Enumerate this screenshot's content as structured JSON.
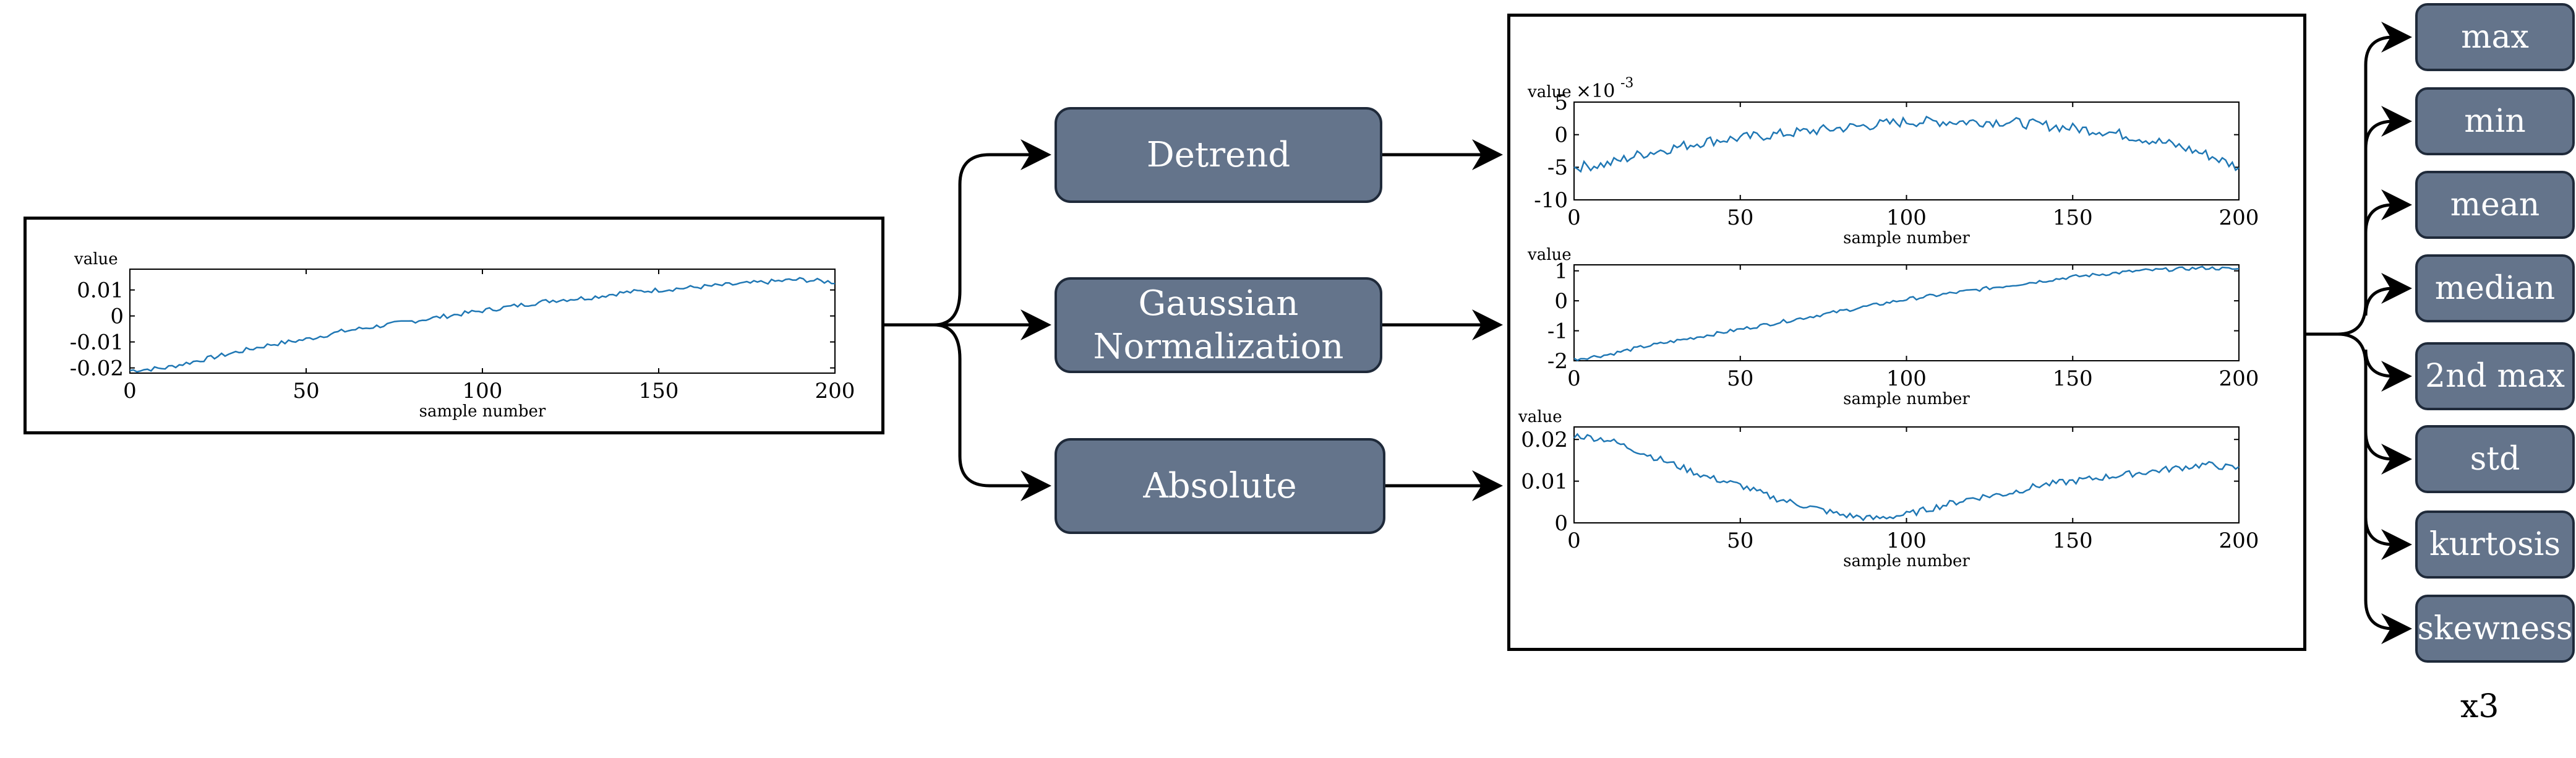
{
  "processing_steps": [
    {
      "label": "Detrend"
    },
    {
      "label": "Gaussian Normalization",
      "lines": [
        "Gaussian",
        "Normalization"
      ]
    },
    {
      "label": "Absolute"
    }
  ],
  "features": [
    "max",
    "min",
    "mean",
    "median",
    "2nd max",
    "std",
    "kurtosis",
    "skewness"
  ],
  "multiplier": "x3",
  "colors": {
    "box_fill": "#64748b",
    "box_border": "#1f2a3a",
    "line": "#1f77b4",
    "arrow": "#000000"
  },
  "chart_data": [
    {
      "id": "raw",
      "type": "line",
      "ylabel": "value",
      "xlabel": "sample number",
      "xlim": [
        0,
        200
      ],
      "ylim": [
        -0.022,
        0.018
      ],
      "x_ticks": [
        "0",
        "50",
        "100",
        "150",
        "200"
      ],
      "y_ticks": [
        {
          "v": 0.01,
          "label": "0.01"
        },
        {
          "v": 0,
          "label": "0"
        },
        {
          "v": -0.01,
          "label": "-0.01"
        },
        {
          "v": -0.02,
          "label": "-0.02"
        }
      ],
      "series": [
        {
          "x": [
            0,
            10,
            20,
            30,
            40,
            50,
            60,
            70,
            80,
            90,
            100,
            110,
            120,
            130,
            140,
            150,
            160,
            170,
            180,
            190,
            200
          ],
          "y": [
            -0.021,
            -0.02,
            -0.017,
            -0.014,
            -0.011,
            -0.009,
            -0.006,
            -0.004,
            -0.002,
            0.0,
            0.002,
            0.004,
            0.006,
            0.007,
            0.009,
            0.01,
            0.011,
            0.012,
            0.013,
            0.014,
            0.013
          ]
        }
      ]
    },
    {
      "id": "detrend",
      "type": "line",
      "ylabel": "value",
      "exponent_prefix": "×10",
      "exponent": "-3",
      "xlabel": "sample number",
      "xlim": [
        0,
        200
      ],
      "ylim": [
        -10,
        5
      ],
      "x_ticks": [
        "0",
        "50",
        "100",
        "150",
        "200"
      ],
      "y_ticks": [
        {
          "v": 5,
          "label": "5"
        },
        {
          "v": 0,
          "label": "0"
        },
        {
          "v": -5,
          "label": "-5"
        },
        {
          "v": -10,
          "label": "-10"
        }
      ],
      "series": [
        {
          "x": [
            0,
            10,
            20,
            30,
            40,
            50,
            60,
            70,
            80,
            90,
            100,
            110,
            120,
            130,
            140,
            150,
            160,
            170,
            180,
            190,
            200
          ],
          "y": [
            -5,
            -4.5,
            -3,
            -2,
            -1,
            -0.5,
            0,
            0.5,
            1,
            1.5,
            2,
            2,
            2,
            2,
            1.5,
            1,
            0.5,
            -0.5,
            -1.5,
            -3,
            -5
          ]
        }
      ]
    },
    {
      "id": "gaussian",
      "type": "line",
      "ylabel": "value",
      "xlabel": "sample number",
      "xlim": [
        0,
        200
      ],
      "ylim": [
        -2,
        1.2
      ],
      "x_ticks": [
        "0",
        "50",
        "100",
        "150",
        "200"
      ],
      "y_ticks": [
        {
          "v": 1,
          "label": "1"
        },
        {
          "v": 0,
          "label": "0"
        },
        {
          "v": -1,
          "label": "-1"
        },
        {
          "v": -2,
          "label": "-2"
        }
      ],
      "series": [
        {
          "x": [
            0,
            10,
            20,
            30,
            40,
            50,
            60,
            70,
            80,
            90,
            100,
            110,
            120,
            130,
            140,
            150,
            160,
            170,
            180,
            190,
            200
          ],
          "y": [
            -1.95,
            -1.8,
            -1.55,
            -1.35,
            -1.15,
            -0.95,
            -0.75,
            -0.55,
            -0.35,
            -0.15,
            0.05,
            0.2,
            0.35,
            0.5,
            0.65,
            0.8,
            0.9,
            1.0,
            1.05,
            1.1,
            1.05
          ]
        }
      ]
    },
    {
      "id": "absolute",
      "type": "line",
      "ylabel": "value",
      "xlabel": "sample number",
      "xlim": [
        0,
        200
      ],
      "ylim": [
        0,
        0.023
      ],
      "x_ticks": [
        "0",
        "50",
        "100",
        "150",
        "200"
      ],
      "y_ticks": [
        {
          "v": 0.02,
          "label": "0.02"
        },
        {
          "v": 0.01,
          "label": "0.01"
        },
        {
          "v": 0,
          "label": "0"
        }
      ],
      "series": [
        {
          "x": [
            0,
            10,
            20,
            30,
            40,
            50,
            60,
            70,
            80,
            90,
            100,
            110,
            120,
            130,
            140,
            150,
            160,
            170,
            180,
            190,
            200
          ],
          "y": [
            0.021,
            0.02,
            0.017,
            0.014,
            0.011,
            0.009,
            0.006,
            0.004,
            0.002,
            0.001,
            0.002,
            0.004,
            0.006,
            0.007,
            0.009,
            0.01,
            0.011,
            0.012,
            0.013,
            0.014,
            0.013
          ]
        }
      ]
    }
  ]
}
